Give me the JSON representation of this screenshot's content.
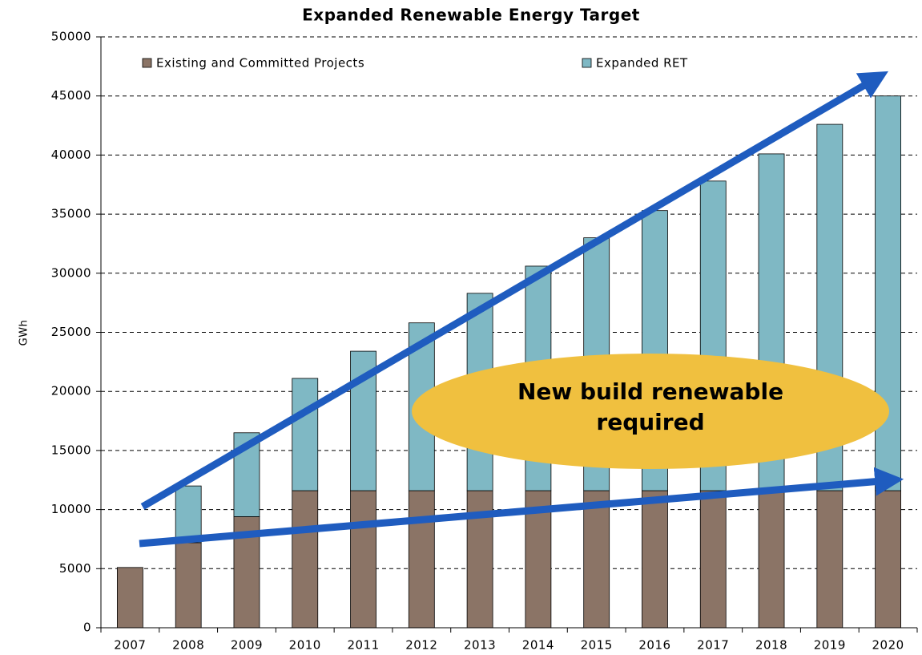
{
  "chart_data": {
    "type": "stacked_bar",
    "title": "Expanded Renewable Energy Target",
    "ylabel": "GWh",
    "categories": [
      "2007",
      "2008",
      "2009",
      "2010",
      "2011",
      "2012",
      "2013",
      "2014",
      "2015",
      "2016",
      "2017",
      "2018",
      "2019",
      "2020"
    ],
    "series": [
      {
        "name": "Existing and Committed Projects",
        "color": "#8b7466",
        "values": [
          5100,
          7200,
          9400,
          11600,
          11600,
          11600,
          11600,
          11600,
          11600,
          11600,
          11600,
          11600,
          11600,
          11600
        ]
      },
      {
        "name": "Expanded RET",
        "color": "#7fb8c4",
        "values": [
          0,
          4800,
          7100,
          9500,
          11800,
          14200,
          16700,
          19000,
          21400,
          23700,
          26200,
          28500,
          31000,
          33400
        ]
      }
    ],
    "annotation": "New build renewable required",
    "ylim": [
      0,
      50000
    ],
    "yticks": [
      0,
      5000,
      10000,
      15000,
      20000,
      25000,
      30000,
      35000,
      40000,
      45000,
      50000
    ],
    "grid": true,
    "legend": "top"
  }
}
